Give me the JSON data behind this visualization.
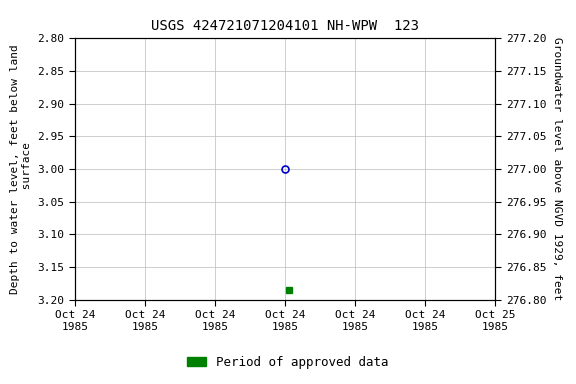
{
  "title": "USGS 424721071204101 NH-WPW  123",
  "left_ylabel_lines": [
    "Depth to water level, feet below land",
    " surface"
  ],
  "right_ylabel": "Groundwater level above NGVD 1929, feet",
  "ylim_left": [
    2.8,
    3.2
  ],
  "ylim_right_bottom": 276.8,
  "ylim_right_top": 277.2,
  "yticks_left": [
    2.8,
    2.85,
    2.9,
    2.95,
    3.0,
    3.05,
    3.1,
    3.15,
    3.2
  ],
  "ytick_labels_left": [
    "2.80",
    "2.85",
    "2.90",
    "2.95",
    "3.00",
    "3.05",
    "3.10",
    "3.15",
    "3.20"
  ],
  "ytick_labels_right": [
    "277.20",
    "277.15",
    "277.10",
    "277.05",
    "277.00",
    "276.95",
    "276.90",
    "276.85",
    "276.80"
  ],
  "xlim": [
    0.0,
    6.0
  ],
  "xtick_positions": [
    0,
    1,
    2,
    3,
    4,
    5,
    6
  ],
  "xtick_labels": [
    "Oct 24\n1985",
    "Oct 24\n1985",
    "Oct 24\n1985",
    "Oct 24\n1985",
    "Oct 24\n1985",
    "Oct 24\n1985",
    "Oct 25\n1985"
  ],
  "blue_point_x": 3.0,
  "blue_point_y": 3.0,
  "green_point_x": 3.05,
  "green_point_y": 3.185,
  "blue_color": "#0000cc",
  "green_color": "#008000",
  "legend_label": "Period of approved data",
  "bg_color": "#ffffff",
  "grid_color": "#bbbbbb",
  "title_fontsize": 10,
  "label_fontsize": 8,
  "tick_fontsize": 8
}
